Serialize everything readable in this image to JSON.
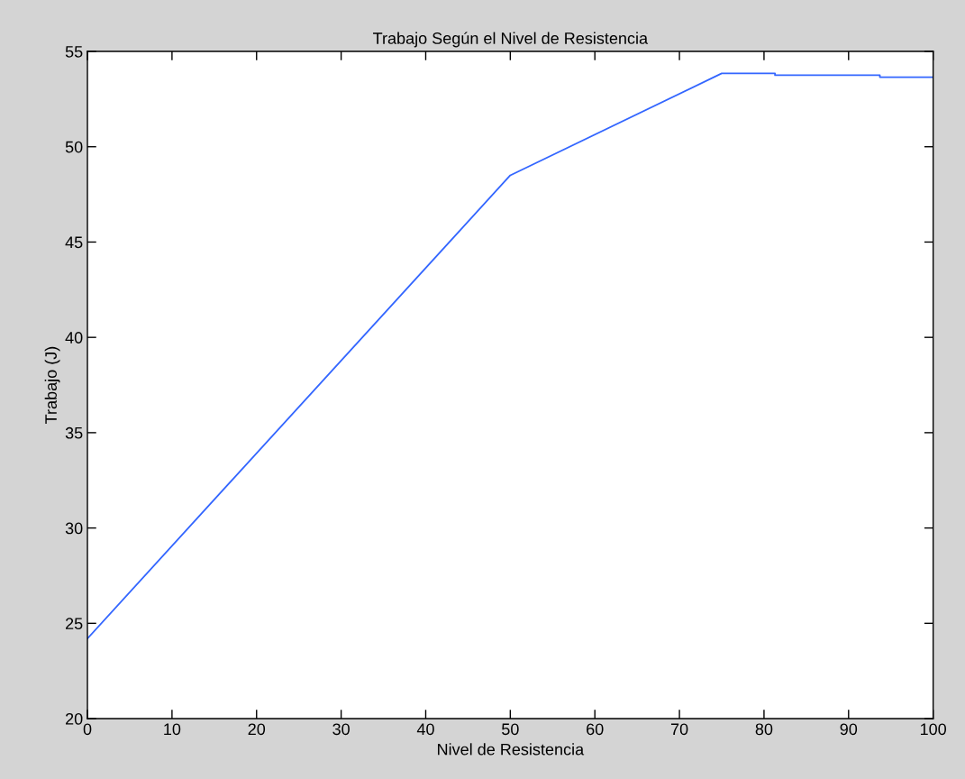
{
  "chart_data": {
    "type": "line",
    "title": "Trabajo Según el Nivel de Resistencia",
    "xlabel": "Nivel de Resistencia",
    "ylabel": "Trabajo (J)",
    "x": [
      0,
      50,
      75,
      81.3,
      81.3,
      93.7,
      93.7,
      100
    ],
    "series": [
      {
        "color": "#3366ff",
        "values": [
          24.2,
          48.5,
          53.85,
          53.85,
          53.75,
          53.75,
          53.65,
          53.65
        ]
      }
    ],
    "xlim": [
      0,
      100
    ],
    "xticks": [
      0,
      10,
      20,
      30,
      40,
      50,
      60,
      70,
      80,
      90,
      100
    ],
    "ylim": [
      20,
      55
    ],
    "yticks": [
      20,
      25,
      30,
      35,
      40,
      45,
      50,
      55
    ],
    "grid": false,
    "legend": false,
    "marker": "none",
    "line_style": "solid"
  }
}
